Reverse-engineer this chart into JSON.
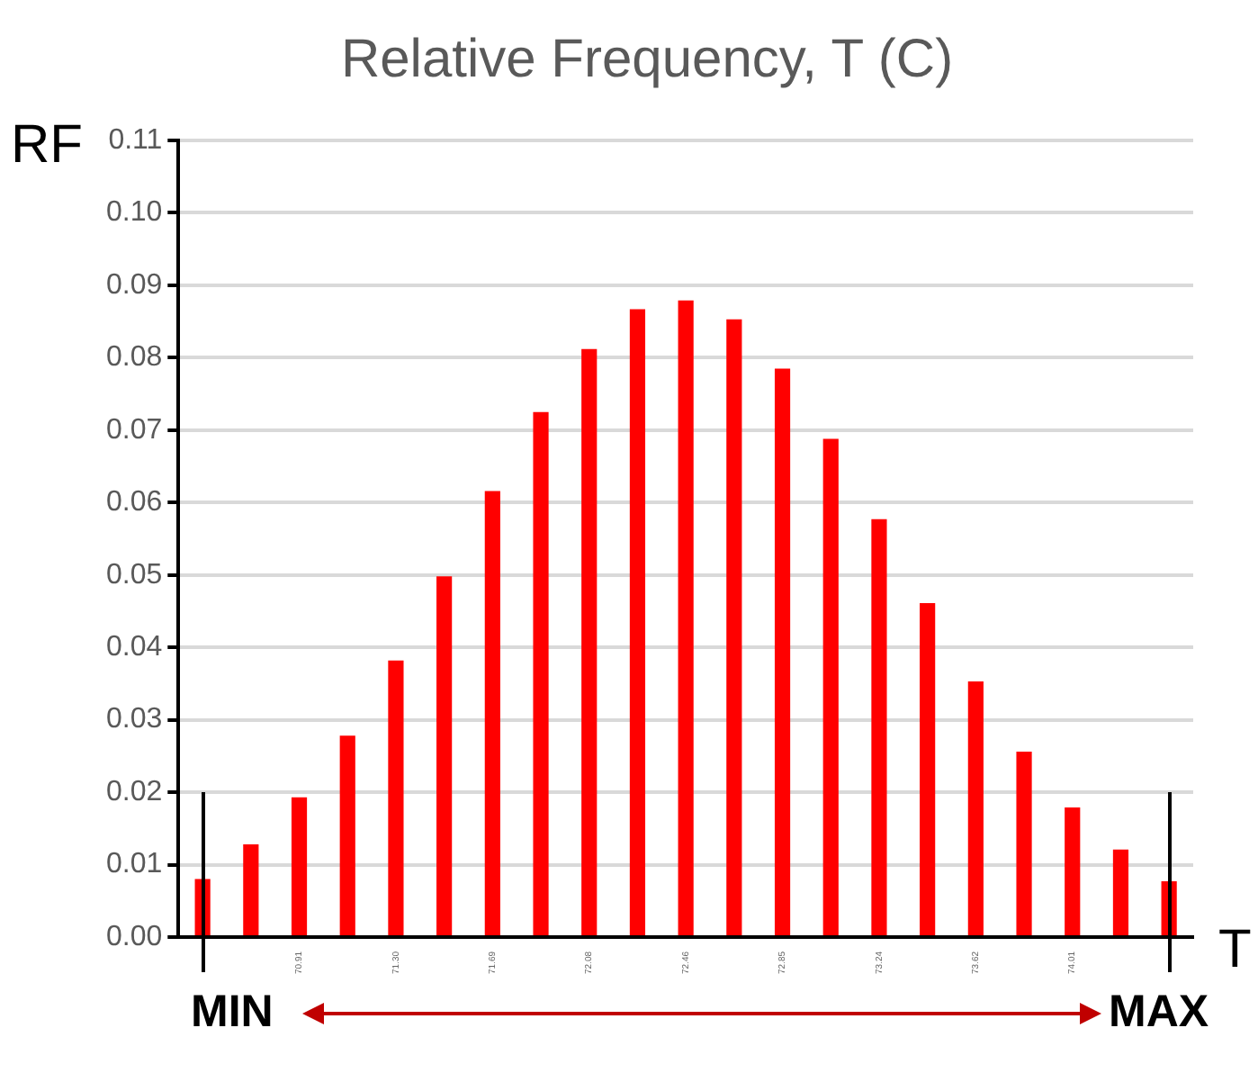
{
  "chart_data": {
    "type": "bar",
    "title": "Relative Frequency, T (C)",
    "ylabel": "RF",
    "xlabel": "T",
    "categories": [
      null,
      null,
      "70.91",
      null,
      "71.30",
      null,
      "71.69",
      null,
      "72.08",
      null,
      "72.46",
      null,
      "72.85",
      null,
      "73.24",
      null,
      "73.62",
      null,
      "74.01",
      null,
      null
    ],
    "values": [
      0.008,
      0.0128,
      0.0193,
      0.0278,
      0.0382,
      0.0498,
      0.0616,
      0.0725,
      0.0812,
      0.0867,
      0.0879,
      0.0853,
      0.0785,
      0.0688,
      0.0577,
      0.0461,
      0.0353,
      0.0256,
      0.0179,
      0.0121,
      0.0077
    ],
    "color": "#ff0000",
    "ylim": [
      0,
      0.11
    ],
    "yticks": [
      {
        "value": 0,
        "label": "0.00"
      },
      {
        "value": 0.01,
        "label": "0.01"
      },
      {
        "value": 0.02,
        "label": "0.02"
      },
      {
        "value": 0.03,
        "label": "0.03"
      },
      {
        "value": 0.04,
        "label": "0.04"
      },
      {
        "value": 0.05,
        "label": "0.05"
      },
      {
        "value": 0.06,
        "label": "0.06"
      },
      {
        "value": 0.07,
        "label": "0.07"
      },
      {
        "value": 0.08,
        "label": "0.08"
      },
      {
        "value": 0.09,
        "label": "0.09"
      },
      {
        "value": 0.1,
        "label": "0.10"
      },
      {
        "value": 0.11,
        "label": "0.11"
      }
    ],
    "grid": "y",
    "legend": false,
    "annotations": [
      "MIN",
      "MAX"
    ]
  }
}
